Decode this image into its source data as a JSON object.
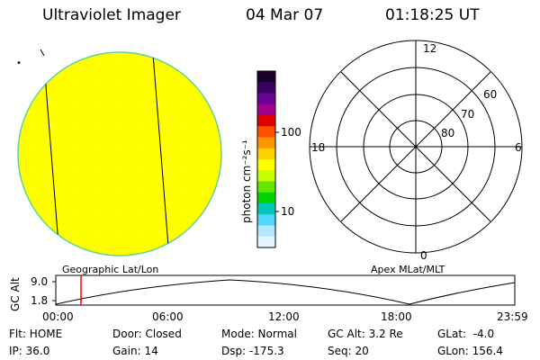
{
  "header": {
    "instrument": "Ultraviolet Imager",
    "date": "04 Mar 07",
    "time": "01:18:25 UT"
  },
  "colorbar": {
    "unit_label": "photon cm⁻²s⁻¹",
    "tick_labels": [
      "100",
      "10"
    ],
    "colors": [
      "#1a0028",
      "#3a0060",
      "#6a0096",
      "#a0008c",
      "#dc0000",
      "#ff5000",
      "#ff9600",
      "#ffd200",
      "#ffff00",
      "#c8ff00",
      "#64e600",
      "#00d200",
      "#00c8b4",
      "#50d7ff",
      "#b4e6ff",
      "#e8f4ff"
    ]
  },
  "image_panel": {
    "caption": "Geographic Lat/Lon",
    "fill_color": "#ffff00",
    "speckle_color": "#eeee88",
    "rim_color": "#5fd39a",
    "corner_mark": "•"
  },
  "polar_plot": {
    "caption": "Apex MLat/MLT",
    "mlt_labels": [
      "12",
      "18",
      "6",
      "0"
    ],
    "lat_labels": [
      "60",
      "70",
      "80"
    ]
  },
  "altitude_strip": {
    "axis_label": "GC Alt",
    "y_ticks": [
      "9.0",
      "1.8"
    ],
    "x_ticks": [
      "00:00",
      "06:00",
      "12:00",
      "18:00",
      "23:59"
    ],
    "marker_color": "#ff0000"
  },
  "status": {
    "row1": [
      "Flt: HOME",
      "Door: Closed",
      "Mode: Normal",
      "GC Alt: 3.2 Re",
      "GLat:  -4.0"
    ],
    "row2": [
      "IP: 36.0",
      "Gain: 14",
      "Dsp: -175.3",
      "Seq: 20",
      "GLon: 156.4"
    ]
  }
}
